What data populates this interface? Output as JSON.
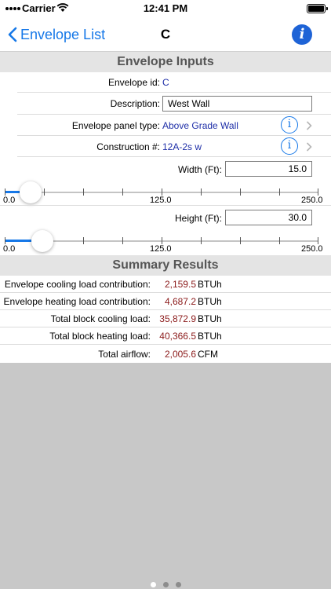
{
  "status_bar": {
    "carrier": "Carrier",
    "time": "12:41 PM"
  },
  "nav": {
    "back_label": "Envelope List",
    "title": "C"
  },
  "inputs_header": "Envelope Inputs",
  "envelope_id": {
    "label": "Envelope id:",
    "value": "C"
  },
  "description": {
    "label": "Description:",
    "value": "West Wall"
  },
  "panel_type": {
    "label": "Envelope panel type:",
    "value": "Above Grade Wall"
  },
  "construction": {
    "label": "Construction #:",
    "value": "12A-2s w"
  },
  "width": {
    "label": "Width (Ft):",
    "value": "15.0",
    "slider": {
      "min_label": "0.0",
      "mid_label": "125.0",
      "max_label": "250.0",
      "level": 15.0,
      "max": 250.0
    }
  },
  "height": {
    "label": "Height (Ft):",
    "value": "30.0",
    "slider": {
      "min_label": "0.0",
      "mid_label": "125.0",
      "max_label": "250.0",
      "level": 30.0,
      "max": 250.0
    }
  },
  "summary_header": "Summary Results",
  "results": [
    {
      "label": "Envelope cooling load contribution:",
      "value": "2,159.5",
      "unit": "BTUh"
    },
    {
      "label": "Envelope heating load contribution:",
      "value": "4,687.2",
      "unit": "BTUh"
    },
    {
      "label": "Total block cooling load:",
      "value": "35,872.9",
      "unit": "BTUh"
    },
    {
      "label": "Total block heating load:",
      "value": "40,366.5",
      "unit": "BTUh"
    },
    {
      "label": "Total airflow:",
      "value": "2,005.6",
      "unit": "CFM"
    }
  ],
  "colors": {
    "accent": "#1678e8",
    "value_blue": "#1f2fa8",
    "result_red": "#8b1a1a"
  },
  "icons": {
    "back": "chevron-left-icon",
    "info": "info-icon",
    "disclosure": "chevron-right-icon"
  },
  "pagination": {
    "count": 3,
    "active": 0
  }
}
